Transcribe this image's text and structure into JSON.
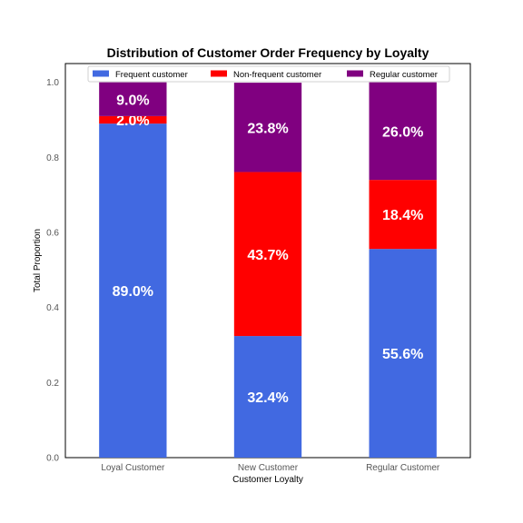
{
  "chart_data": {
    "type": "bar",
    "stacked": true,
    "title": "Distribution of Customer Order Frequency by Loyalty",
    "xlabel": "Customer Loyalty",
    "ylabel": "Total Proportion",
    "ylim": [
      0,
      1.05
    ],
    "yticks": [
      "0.0",
      "0.2",
      "0.4",
      "0.6",
      "0.8",
      "1.0"
    ],
    "grid": false,
    "legend": "top-center",
    "categories": [
      "Loyal Customer",
      "New Customer",
      "Regular Customer"
    ],
    "series": [
      {
        "name": "Frequent customer",
        "color": "#4169e1",
        "values": [
          0.89,
          0.324,
          0.556
        ],
        "labels": [
          "89.0%",
          "32.4%",
          "55.6%"
        ]
      },
      {
        "name": "Non-frequent customer",
        "color": "#ff0000",
        "values": [
          0.02,
          0.437,
          0.184
        ],
        "labels": [
          "2.0%",
          "43.7%",
          "18.4%"
        ]
      },
      {
        "name": "Regular customer",
        "color": "#800080",
        "values": [
          0.09,
          0.238,
          0.26
        ],
        "labels": [
          "9.0%",
          "23.8%",
          "26.0%"
        ]
      }
    ]
  }
}
